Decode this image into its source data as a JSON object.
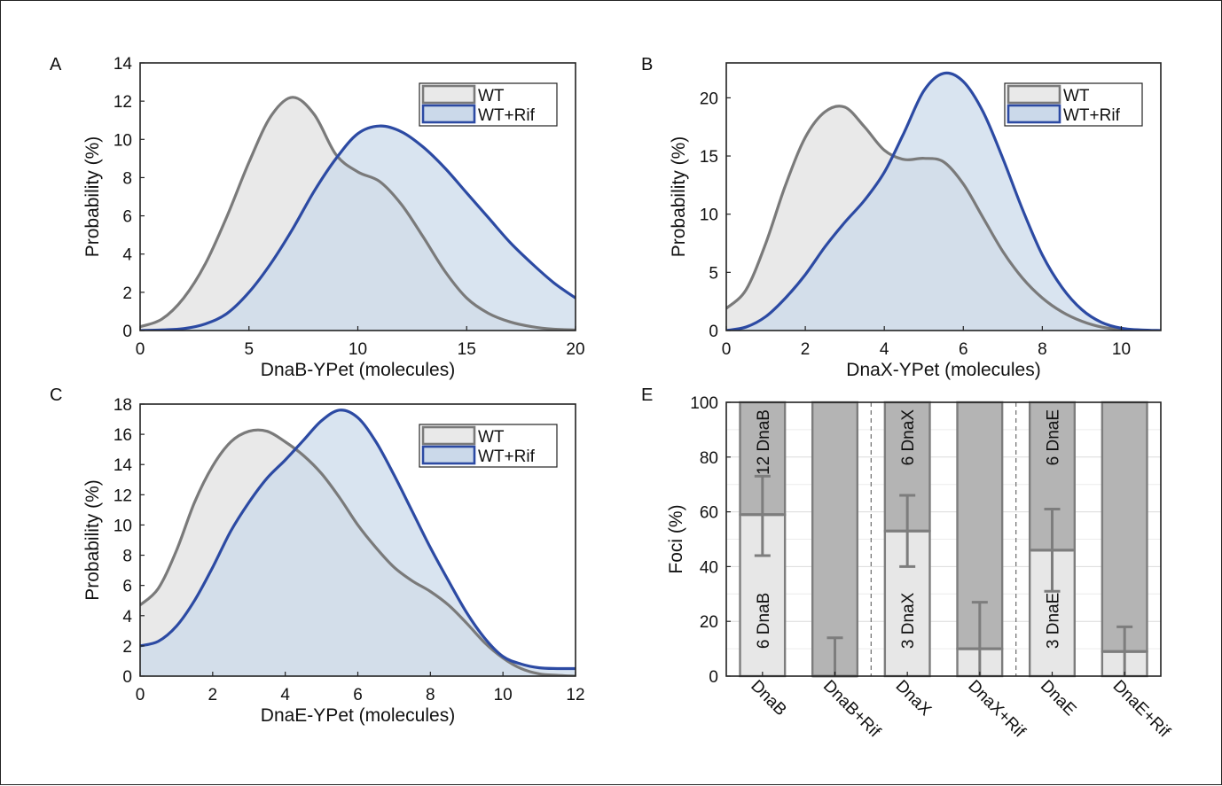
{
  "panels": [
    {
      "letter": "A",
      "type": "area",
      "xlabel": "DnaB-YPet (molecules)",
      "ylabel": "Probability (%)",
      "xlim": [
        0,
        20
      ],
      "ylim": [
        0,
        14
      ],
      "xticks": [
        0,
        5,
        10,
        15,
        20
      ],
      "yticks": [
        0,
        2,
        4,
        6,
        8,
        10,
        12,
        14
      ],
      "legend": {
        "position": "top-right",
        "items": [
          "WT",
          "WT+Rif"
        ]
      },
      "series": [
        {
          "name": "WT",
          "color": "#7a7a7a",
          "fill": "#e9e9e9",
          "x": [
            0,
            1,
            2,
            3,
            4,
            5,
            6,
            7,
            8,
            9,
            10,
            11,
            12,
            13,
            14,
            15,
            16,
            17,
            18,
            19,
            20
          ],
          "y": [
            0.2,
            0.6,
            1.7,
            3.5,
            6.0,
            8.8,
            11.2,
            12.2,
            11.3,
            9.2,
            8.3,
            7.8,
            6.6,
            4.9,
            3.1,
            1.7,
            0.9,
            0.45,
            0.2,
            0.07,
            0.03
          ]
        },
        {
          "name": "WT+Rif",
          "color": "#2c4aa3",
          "fill": "#cbd9ea",
          "x": [
            0,
            1,
            2,
            3,
            4,
            5,
            6,
            7,
            8,
            9,
            10,
            11,
            12,
            13,
            14,
            15,
            16,
            17,
            18,
            19,
            20
          ],
          "y": [
            0.0,
            0.03,
            0.1,
            0.35,
            0.9,
            2.0,
            3.5,
            5.3,
            7.3,
            9.0,
            10.3,
            10.7,
            10.4,
            9.6,
            8.5,
            7.2,
            5.9,
            4.6,
            3.5,
            2.5,
            1.7
          ]
        }
      ]
    },
    {
      "letter": "B",
      "type": "area",
      "xlabel": "DnaX-YPet (molecules)",
      "ylabel": "Probability (%)",
      "xlim": [
        0,
        11
      ],
      "ylim": [
        0,
        23
      ],
      "xticks": [
        0,
        2,
        4,
        6,
        8,
        10
      ],
      "yticks": [
        0,
        5,
        10,
        15,
        20
      ],
      "legend": {
        "position": "top-right",
        "items": [
          "WT",
          "WT+Rif"
        ]
      },
      "series": [
        {
          "name": "WT",
          "color": "#7a7a7a",
          "fill": "#e9e9e9",
          "x": [
            0,
            0.5,
            1,
            1.5,
            2,
            2.5,
            3,
            3.5,
            4,
            4.5,
            5,
            5.5,
            6,
            6.5,
            7,
            7.5,
            8,
            8.5,
            9,
            9.5,
            10,
            10.5
          ],
          "y": [
            1.9,
            3.5,
            7.5,
            12.5,
            16.6,
            18.8,
            19.2,
            17.5,
            15.5,
            14.7,
            14.8,
            14.5,
            12.6,
            9.7,
            6.8,
            4.5,
            2.8,
            1.6,
            0.8,
            0.3,
            0.1,
            0.0
          ]
        },
        {
          "name": "WT+Rif",
          "color": "#2c4aa3",
          "fill": "#cbd9ea",
          "x": [
            0,
            0.5,
            1,
            1.5,
            2,
            2.5,
            3,
            3.5,
            4,
            4.5,
            5,
            5.5,
            6,
            6.5,
            7,
            7.5,
            8,
            8.5,
            9,
            9.5,
            10,
            10.5,
            11
          ],
          "y": [
            0.0,
            0.3,
            1.2,
            2.8,
            4.8,
            7.2,
            9.3,
            11.2,
            13.6,
            17.0,
            20.6,
            22.1,
            21.4,
            18.8,
            14.8,
            10.4,
            6.5,
            3.7,
            1.8,
            0.7,
            0.2,
            0.05,
            0.0
          ]
        }
      ]
    },
    {
      "letter": "C",
      "type": "area",
      "xlabel": "DnaE-YPet (molecules)",
      "ylabel": "Probability (%)",
      "xlim": [
        0,
        12
      ],
      "ylim": [
        0,
        18
      ],
      "xticks": [
        0,
        2,
        4,
        6,
        8,
        10,
        12
      ],
      "yticks": [
        0,
        2,
        4,
        6,
        8,
        10,
        12,
        14,
        16,
        18
      ],
      "legend": {
        "position": "top-right",
        "items": [
          "WT",
          "WT+Rif"
        ]
      },
      "series": [
        {
          "name": "WT",
          "color": "#7a7a7a",
          "fill": "#e9e9e9",
          "x": [
            0,
            0.5,
            1,
            1.5,
            2,
            2.5,
            3,
            3.5,
            4,
            4.5,
            5,
            5.5,
            6,
            6.5,
            7,
            7.5,
            8,
            8.5,
            9,
            9.5,
            10,
            10.5,
            11,
            11.5,
            12
          ],
          "y": [
            4.7,
            5.8,
            8.3,
            11.5,
            13.9,
            15.5,
            16.2,
            16.2,
            15.5,
            14.6,
            13.4,
            11.8,
            10.0,
            8.5,
            7.2,
            6.3,
            5.6,
            4.7,
            3.5,
            2.2,
            1.2,
            0.5,
            0.15,
            0.05,
            0.0
          ]
        },
        {
          "name": "WT+Rif",
          "color": "#2c4aa3",
          "fill": "#cbd9ea",
          "x": [
            0,
            0.5,
            1,
            1.5,
            2,
            2.5,
            3,
            3.5,
            4,
            4.5,
            5,
            5.5,
            6,
            6.5,
            7,
            7.5,
            8,
            8.5,
            9,
            9.5,
            10,
            10.5,
            11,
            11.5,
            12
          ],
          "y": [
            2.0,
            2.3,
            3.3,
            5.0,
            7.2,
            9.6,
            11.5,
            13.1,
            14.3,
            15.6,
            16.9,
            17.6,
            17.1,
            15.5,
            13.3,
            10.9,
            8.5,
            6.3,
            4.2,
            2.5,
            1.3,
            0.8,
            0.55,
            0.5,
            0.5
          ]
        }
      ]
    },
    {
      "letter": "E",
      "type": "bar",
      "ylabel": "Foci (%)",
      "ylim": [
        0,
        100
      ],
      "yticks": [
        0,
        20,
        40,
        60,
        80,
        100
      ],
      "grid": true,
      "categories": [
        "DnaB",
        "DnaB+Rif",
        "DnaX",
        "DnaX+Rif",
        "DnaE",
        "DnaE+Rif"
      ],
      "lower_values": [
        59,
        0,
        53,
        10,
        46,
        9
      ],
      "upper_values": [
        41,
        100,
        47,
        90,
        54,
        91
      ],
      "error_low": [
        44,
        0,
        40,
        0,
        31,
        0
      ],
      "error_high": [
        73,
        14,
        66,
        27,
        61,
        18
      ],
      "bar_labels": [
        {
          "lower": "6 DnaB",
          "upper": "12 DnaB"
        },
        {
          "lower": "",
          "upper": ""
        },
        {
          "lower": "3 DnaX",
          "upper": "6 DnaX"
        },
        {
          "lower": "",
          "upper": ""
        },
        {
          "lower": "3 DnaE",
          "upper": "6 DnaE"
        },
        {
          "lower": "",
          "upper": ""
        }
      ],
      "colors": {
        "lower": "#e7e7e7",
        "upper": "#b4b4b4",
        "edge": "#7d7d7d",
        "error": "#7d7d7d"
      }
    }
  ]
}
